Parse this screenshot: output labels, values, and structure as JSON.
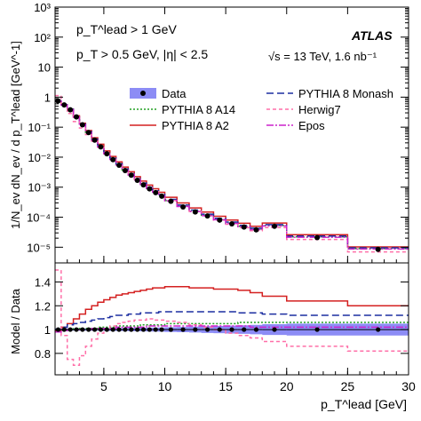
{
  "chart_data": {
    "type": "line",
    "top_panel": {
      "ylabel": "1/N_ev dN_ev / d p_T^lead [GeV^-1]",
      "yscale": "log",
      "ylim": [
        3e-06,
        1000
      ],
      "yticks": [
        {
          "value": 1e-05,
          "label": "10⁻⁵"
        },
        {
          "value": 0.0001,
          "label": "10⁻⁴"
        },
        {
          "value": 0.001,
          "label": "10⁻³"
        },
        {
          "value": 0.01,
          "label": "10⁻²"
        },
        {
          "value": 0.1,
          "label": "10⁻¹"
        },
        {
          "value": 1,
          "label": "1"
        },
        {
          "value": 10,
          "label": "10"
        },
        {
          "value": 100,
          "label": "10²"
        },
        {
          "value": 1000,
          "label": "10³"
        }
      ],
      "cuts": [
        "p_T^lead > 1 GeV",
        "p_T > 0.5 GeV, |η| < 2.5"
      ],
      "atlas_label": "ATLAS",
      "energy_label": "√s = 13 TeV, 1.6 nb⁻¹",
      "legend_position": "middle-right"
    },
    "ratio_panel": {
      "ylabel": "Model / Data",
      "ylim": [
        0.62,
        1.56
      ],
      "yticks": [
        0.8,
        1,
        1.2,
        1.4
      ]
    },
    "xlabel": "p_T^lead [GeV]",
    "xlim": [
      1,
      30
    ],
    "xticks": [
      5,
      10,
      15,
      20,
      25,
      30
    ],
    "bin_edges": [
      1,
      1.5,
      2,
      2.5,
      3,
      3.5,
      4,
      4.5,
      5,
      5.5,
      6,
      6.5,
      7,
      7.5,
      8,
      8.5,
      9,
      9.5,
      10,
      11,
      12,
      13,
      14,
      15,
      16,
      17,
      18,
      20,
      25,
      30
    ],
    "data": {
      "name": "Data",
      "x": [
        1.25,
        1.75,
        2.25,
        2.75,
        3.25,
        3.75,
        4.25,
        4.75,
        5.25,
        5.75,
        6.25,
        6.75,
        7.25,
        7.75,
        8.25,
        8.75,
        9.25,
        9.75,
        10.5,
        11.5,
        12.5,
        13.5,
        14.5,
        15.5,
        16.5,
        17.5,
        19,
        22.5,
        27.5
      ],
      "y": [
        0.75,
        0.55,
        0.38,
        0.22,
        0.12,
        0.066,
        0.037,
        0.022,
        0.013,
        0.0083,
        0.0054,
        0.0036,
        0.0025,
        0.0017,
        0.0012,
        0.00088,
        0.00066,
        0.0005,
        0.00034,
        0.00022,
        0.00015,
        0.00011,
        8e-05,
        6e-05,
        4.7e-05,
        3.8e-05,
        5e-05,
        2.1e-05,
        8.5e-06
      ]
    },
    "series": [
      {
        "name": "PYTHIA 8 A14",
        "color": "#22a022",
        "dash": "2,2",
        "ratio": [
          1.0,
          1.0,
          1.0,
          1.01,
          1.01,
          1.01,
          1.01,
          1.02,
          1.02,
          1.02,
          1.03,
          1.03,
          1.03,
          1.03,
          1.04,
          1.04,
          1.04,
          1.04,
          1.05,
          1.05,
          1.05,
          1.05,
          1.05,
          1.05,
          1.06,
          1.06,
          1.06,
          1.06,
          1.06
        ]
      },
      {
        "name": "PYTHIA 8 A2",
        "color": "#d42020",
        "dash": "none",
        "ratio": [
          0.99,
          1.02,
          1.05,
          1.09,
          1.13,
          1.17,
          1.2,
          1.23,
          1.25,
          1.27,
          1.29,
          1.3,
          1.31,
          1.32,
          1.33,
          1.34,
          1.35,
          1.35,
          1.36,
          1.36,
          1.35,
          1.35,
          1.34,
          1.34,
          1.33,
          1.31,
          1.28,
          1.24,
          1.2
        ]
      },
      {
        "name": "PYTHIA 8 Monash",
        "color": "#1c2ea0",
        "dash": "8,4",
        "ratio": [
          1.0,
          1.02,
          1.04,
          1.05,
          1.06,
          1.07,
          1.08,
          1.09,
          1.1,
          1.11,
          1.12,
          1.12,
          1.13,
          1.13,
          1.14,
          1.14,
          1.14,
          1.15,
          1.15,
          1.15,
          1.15,
          1.15,
          1.15,
          1.15,
          1.14,
          1.14,
          1.13,
          1.12,
          1.12
        ]
      },
      {
        "name": "Herwig7",
        "color": "#ff6fa8",
        "dash": "4,3",
        "ratio": [
          1.5,
          0.95,
          0.75,
          0.7,
          0.78,
          0.86,
          0.92,
          0.97,
          1.0,
          1.03,
          1.05,
          1.06,
          1.07,
          1.08,
          1.08,
          1.09,
          1.08,
          1.08,
          1.07,
          1.06,
          1.04,
          1.02,
          1.0,
          0.97,
          0.95,
          0.93,
          0.9,
          0.86,
          0.82
        ]
      },
      {
        "name": "Epos",
        "color": "#cc22cc",
        "dash": "8,2,2,2",
        "ratio": [
          0.98,
          0.99,
          1.0,
          1.0,
          1.0,
          1.0,
          1.01,
          1.01,
          1.01,
          1.01,
          1.02,
          1.02,
          1.02,
          1.02,
          1.02,
          1.03,
          1.03,
          1.03,
          1.03,
          1.03,
          1.03,
          1.03,
          1.03,
          1.03,
          1.03,
          1.02,
          1.02,
          1.02,
          1.02
        ]
      }
    ],
    "data_band_halfwidth": [
      0.012,
      0.01,
      0.01,
      0.01,
      0.01,
      0.01,
      0.01,
      0.01,
      0.012,
      0.012,
      0.013,
      0.013,
      0.014,
      0.014,
      0.015,
      0.016,
      0.017,
      0.018,
      0.02,
      0.022,
      0.025,
      0.028,
      0.03,
      0.033,
      0.036,
      0.04,
      0.045,
      0.05,
      0.05
    ],
    "legend": [
      "Data",
      "PYTHIA 8 A14",
      "PYTHIA 8 A2",
      "PYTHIA 8 Monash",
      "Herwig7",
      "Epos"
    ],
    "colors": {
      "data_band": "#8c8cf5",
      "frame": "#000000"
    }
  }
}
